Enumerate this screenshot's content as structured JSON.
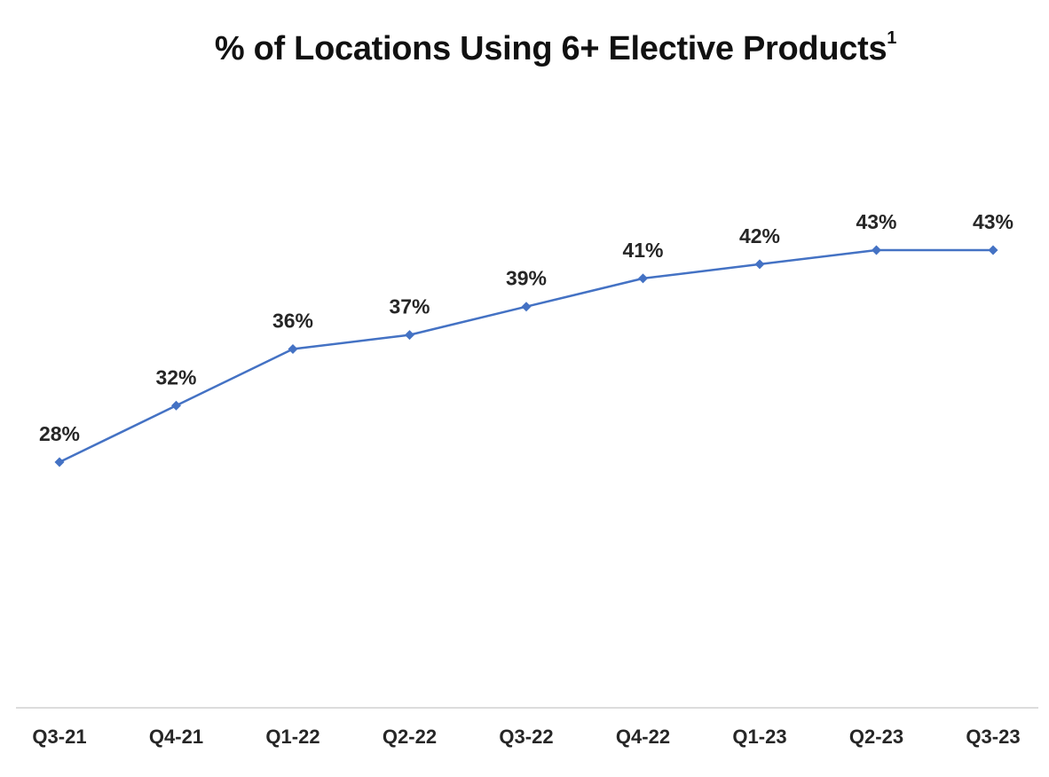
{
  "chart_data": {
    "type": "line",
    "title": "% of Locations Using 6+ Elective Products",
    "title_footnote": "1",
    "xlabel": "",
    "ylabel": "",
    "categories": [
      "Q3-21",
      "Q4-21",
      "Q1-22",
      "Q2-22",
      "Q3-22",
      "Q4-22",
      "Q1-23",
      "Q2-23",
      "Q3-23"
    ],
    "series": [
      {
        "values": [
          28,
          32,
          36,
          37,
          39,
          41,
          42,
          43,
          43
        ],
        "data_labels": [
          "28%",
          "32%",
          "36%",
          "37%",
          "39%",
          "41%",
          "42%",
          "43%",
          "43%"
        ],
        "color": "#4472c4",
        "marker": "diamond"
      }
    ],
    "ylim": [
      0,
      45
    ],
    "grid": false,
    "legend": "none",
    "axis_line_color": "#d0d0d0"
  }
}
